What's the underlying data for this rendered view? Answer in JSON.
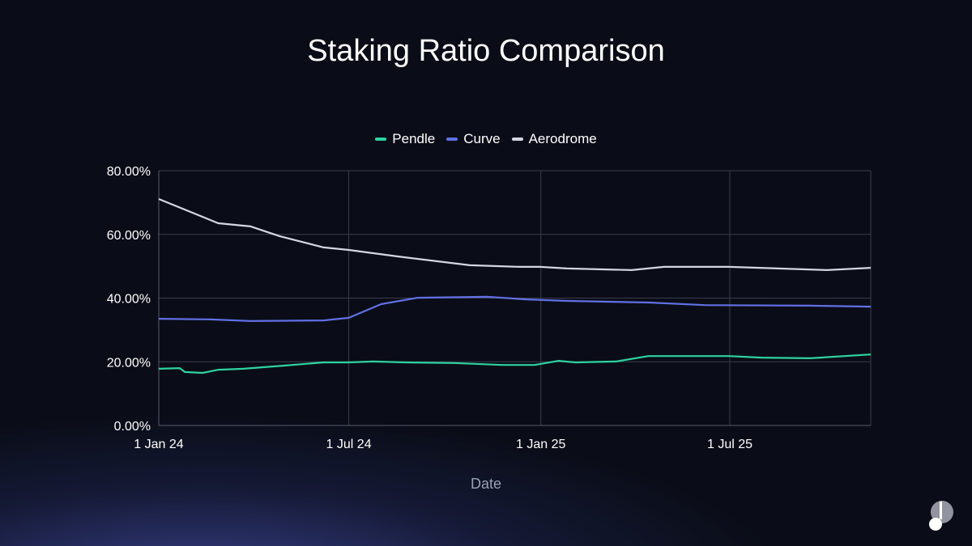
{
  "chart_data": {
    "type": "line",
    "title": "Staking Ratio Comparison",
    "xlabel": "Date",
    "ylabel": "",
    "x_unit": "days since 1 Jan 24",
    "xlim": [
      0,
      682
    ],
    "ylim": [
      0,
      80
    ],
    "yticks": [
      0,
      20,
      40,
      60,
      80
    ],
    "ytick_labels": [
      "0.00%",
      "20.00%",
      "40.00%",
      "60.00%",
      "80.00%"
    ],
    "xticks": [
      0,
      182,
      366,
      547
    ],
    "xtick_labels": [
      "1 Jan 24",
      "1 Jul 24",
      "1 Jan 25",
      "1 Jul 25"
    ],
    "grid": true,
    "legend_position": "top-center",
    "series": [
      {
        "name": "Pendle",
        "color": "#2ed3a3",
        "x": [
          0,
          20,
          25,
          42,
          57,
          81,
          120,
          158,
          182,
          205,
          236,
          283,
          329,
          360,
          383,
          399,
          438,
          469,
          546,
          577,
          624,
          682
        ],
        "y": [
          17.8,
          18.0,
          16.8,
          16.5,
          17.5,
          17.8,
          18.8,
          19.8,
          19.8,
          20.1,
          19.8,
          19.6,
          19.0,
          19.0,
          20.3,
          19.8,
          20.1,
          21.8,
          21.8,
          21.3,
          21.1,
          22.3
        ]
      },
      {
        "name": "Curve",
        "color": "#6170e6",
        "x": [
          0,
          50,
          88,
          158,
          182,
          213,
          248,
          314,
          352,
          391,
          469,
          523,
          624,
          682
        ],
        "y": [
          33.5,
          33.3,
          32.8,
          33.0,
          33.8,
          38.1,
          40.1,
          40.4,
          39.6,
          39.1,
          38.6,
          37.8,
          37.6,
          37.3
        ]
      },
      {
        "name": "Aerodrome",
        "color": "#d4d6e2",
        "x": [
          0,
          57,
          88,
          116,
          158,
          182,
          228,
          298,
          345,
          365,
          391,
          453,
          484,
          546,
          593,
          640,
          682
        ],
        "y": [
          71.1,
          63.5,
          62.5,
          59.4,
          55.9,
          55.1,
          53.1,
          50.3,
          49.8,
          49.8,
          49.3,
          48.8,
          49.8,
          49.8,
          49.3,
          48.8,
          49.5
        ]
      }
    ]
  }
}
